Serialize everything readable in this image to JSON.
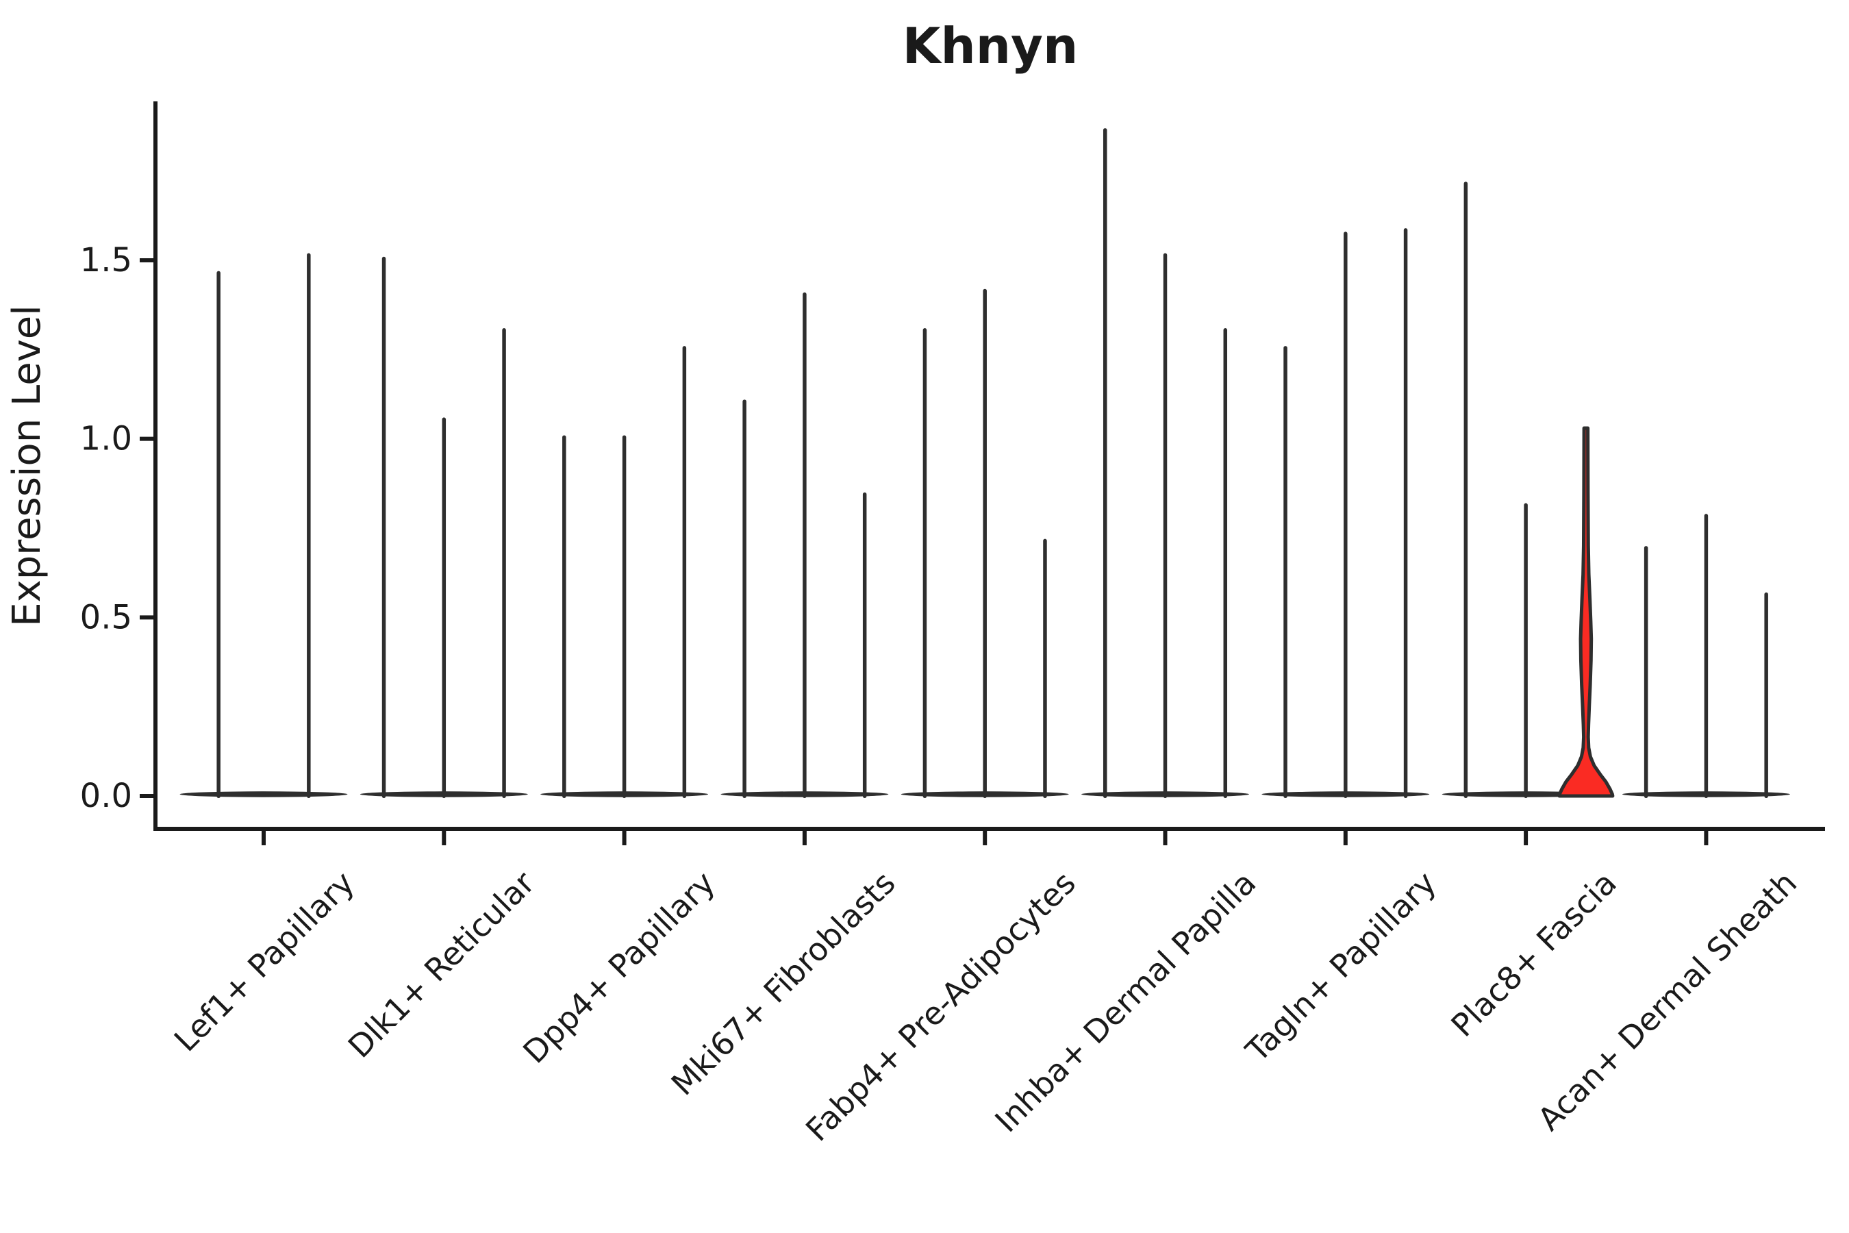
{
  "title": "Khnyn",
  "ylabel": "Expression Level",
  "chart_data": {
    "type": "violin",
    "title": "Khnyn",
    "xlabel": "",
    "ylabel": "Expression Level",
    "ylim": [
      0,
      1.94
    ],
    "yticks": [
      0.0,
      0.5,
      1.0,
      1.5
    ],
    "grid": "off",
    "legend": "none",
    "categories": [
      "Lef1+ Papillary",
      "Dlk1+ Reticular",
      "Dpp4+ Papillary",
      "Mki67+ Fibroblasts",
      "Fabp4+ Pre-Adipocytes",
      "Inhba+ Dermal Papilla",
      "Tagln+ Papillary",
      "Plac8+ Fascia",
      "Acan+ Dermal Sheath"
    ],
    "groups": [
      {
        "category": "Lef1+ Papillary",
        "violin_maxima": [
          1.47,
          1.52
        ]
      },
      {
        "category": "Dlk1+ Reticular",
        "violin_maxima": [
          1.51,
          1.06,
          1.31
        ]
      },
      {
        "category": "Dpp4+ Papillary",
        "violin_maxima": [
          1.01,
          1.01,
          1.26
        ]
      },
      {
        "category": "Mki67+ Fibroblasts",
        "violin_maxima": [
          1.11,
          1.41,
          0.85
        ]
      },
      {
        "category": "Fabp4+ Pre-Adipocytes",
        "violin_maxima": [
          1.31,
          1.42,
          0.72
        ]
      },
      {
        "category": "Inhba+ Dermal Papilla",
        "violin_maxima": [
          1.87,
          1.52,
          1.31
        ]
      },
      {
        "category": "Tagln+ Papillary",
        "violin_maxima": [
          1.26,
          1.58,
          1.59
        ]
      },
      {
        "category": "Plac8+ Fascia",
        "violin_maxima": [
          1.72,
          0.82,
          1.03
        ]
      },
      {
        "category": "Acan+ Dermal Sheath",
        "violin_maxima": [
          0.7,
          0.79,
          0.57
        ]
      }
    ],
    "highlight": {
      "category": "Plac8+ Fascia",
      "violin_index": 2,
      "max_value": 1.03,
      "fill": "#fa2b23",
      "profile": [
        [
          1.03,
          2.75
        ],
        [
          0.85,
          3.0
        ],
        [
          0.7,
          3.4
        ],
        [
          0.62,
          4.2
        ],
        [
          0.55,
          5.8
        ],
        [
          0.49,
          7.0
        ],
        [
          0.44,
          7.8
        ],
        [
          0.38,
          7.4
        ],
        [
          0.31,
          6.2
        ],
        [
          0.25,
          4.8
        ],
        [
          0.2,
          3.8
        ],
        [
          0.165,
          3.3
        ],
        [
          0.135,
          4.0
        ],
        [
          0.11,
          6.5
        ],
        [
          0.085,
          12.0
        ],
        [
          0.06,
          21.0
        ],
        [
          0.04,
          29.0
        ],
        [
          0.02,
          35.0
        ],
        [
          0.005,
          38.5
        ],
        [
          0.0,
          39.0
        ]
      ]
    },
    "style": {
      "violin_color": "#2e2e2e",
      "axis_color": "#1a1a1a",
      "background": "#ffffff",
      "highlight_color": "#fa2b23"
    }
  }
}
